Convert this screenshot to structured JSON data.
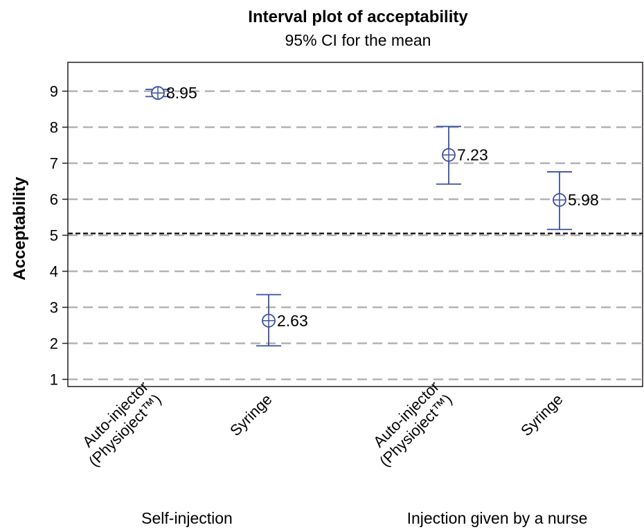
{
  "chart_data": {
    "type": "interval",
    "title": "Interval plot of acceptability",
    "subtitle": "95% CI for the mean",
    "ylabel": "Acceptability",
    "ylim": [
      0.8,
      9.8
    ],
    "yticks": [
      1,
      2,
      3,
      4,
      5,
      6,
      7,
      8,
      9
    ],
    "grid": true,
    "reference_line": 5.05,
    "groups": [
      "Self-injection",
      "Injection given by a nurse"
    ],
    "categories": [
      {
        "lines": [
          "Auto-injector",
          "(Physioject™)"
        ],
        "group": 0
      },
      {
        "lines": [
          "Syringe"
        ],
        "group": 0
      },
      {
        "lines": [
          "Auto-injector",
          "(Physioject™)"
        ],
        "group": 1
      },
      {
        "lines": [
          "Syringe"
        ],
        "group": 1
      }
    ],
    "points": [
      {
        "mean": 8.95,
        "lower": 8.85,
        "upper": 9.05,
        "label": "8.95"
      },
      {
        "mean": 2.63,
        "lower": 1.93,
        "upper": 3.35,
        "label": "2.63"
      },
      {
        "mean": 7.23,
        "lower": 6.42,
        "upper": 8.02,
        "label": "7.23"
      },
      {
        "mean": 5.98,
        "lower": 5.16,
        "upper": 6.76,
        "label": "5.98"
      }
    ],
    "colors": {
      "interval": "#3a4fa3",
      "grid": "#b3b3b3",
      "reference": "#231f20",
      "axis": "#231f20"
    }
  }
}
